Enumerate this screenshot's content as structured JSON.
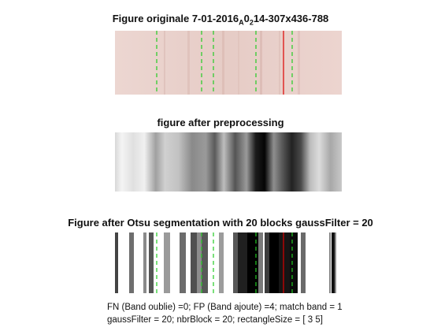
{
  "figure1": {
    "title_prefix": "Figure originale 7-01-2016",
    "sub1": "A",
    "mid": "0",
    "sub2": "2",
    "title_suffix": "14-307x436-788"
  },
  "figure2": {
    "title": "figure after preprocessing"
  },
  "figure3": {
    "title": "Figure after Otsu segmentation with 20 blocks gaussFilter = 20"
  },
  "footer": {
    "line1": "FN (Band oublie) =0; FP (Band ajoute) =4; match band = 1",
    "line2": "gaussFilter = 20; nbrBlock = 20; rectangleSize = [ 3  5]"
  },
  "colors": {
    "strip_bg": "#e9cfc9",
    "green_marker": "#22cc22",
    "red_marker": "#dd0000"
  }
}
